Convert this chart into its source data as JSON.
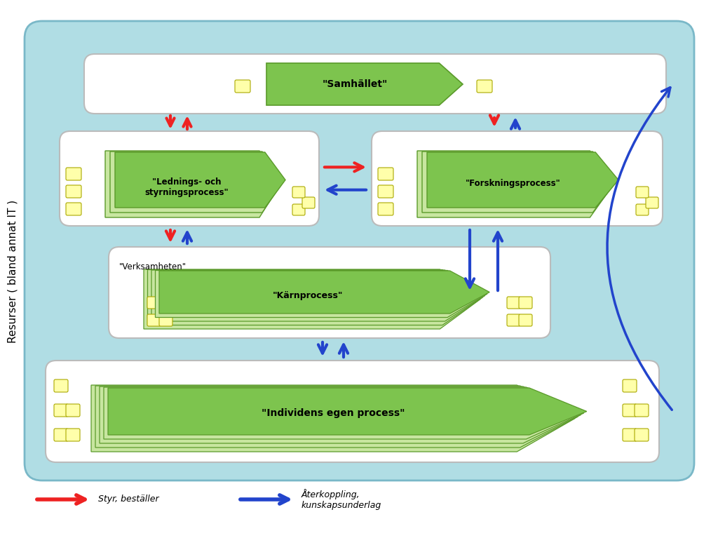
{
  "bg_outer": "#b0dde4",
  "bg_inner": "#b0dde4",
  "box_bg": "#e8e8e8",
  "box_border": "#999999",
  "process_fill_light": "#c8e6a0",
  "process_fill_dark": "#7dc44e",
  "process_border": "#5a9a2a",
  "small_box_fill": "#ffffaa",
  "small_box_border": "#999900",
  "arrow_red": "#ee2222",
  "arrow_blue": "#2244cc",
  "text_color": "#000000",
  "title_color": "#000000",
  "side_label": "Resurser ( bland annat IT )",
  "boxes": [
    {
      "label": "\"Samhället\"",
      "type": "samhallet"
    },
    {
      "label": "\"Lednings- och\nstyrningsprocess\"",
      "type": "lednings"
    },
    {
      "label": "\"Forskningsprocess\"",
      "type": "forsknings"
    },
    {
      "label": "\"Kärnprocess\"",
      "type": "karn"
    },
    {
      "label": "\"Individens egen process\"",
      "type": "individ"
    }
  ],
  "legend": [
    {
      "color": "#ee2222",
      "label": "Styr, beställer"
    },
    {
      "color": "#2244cc",
      "label": "Återkoppling,\nkunskapsunderlag"
    }
  ]
}
